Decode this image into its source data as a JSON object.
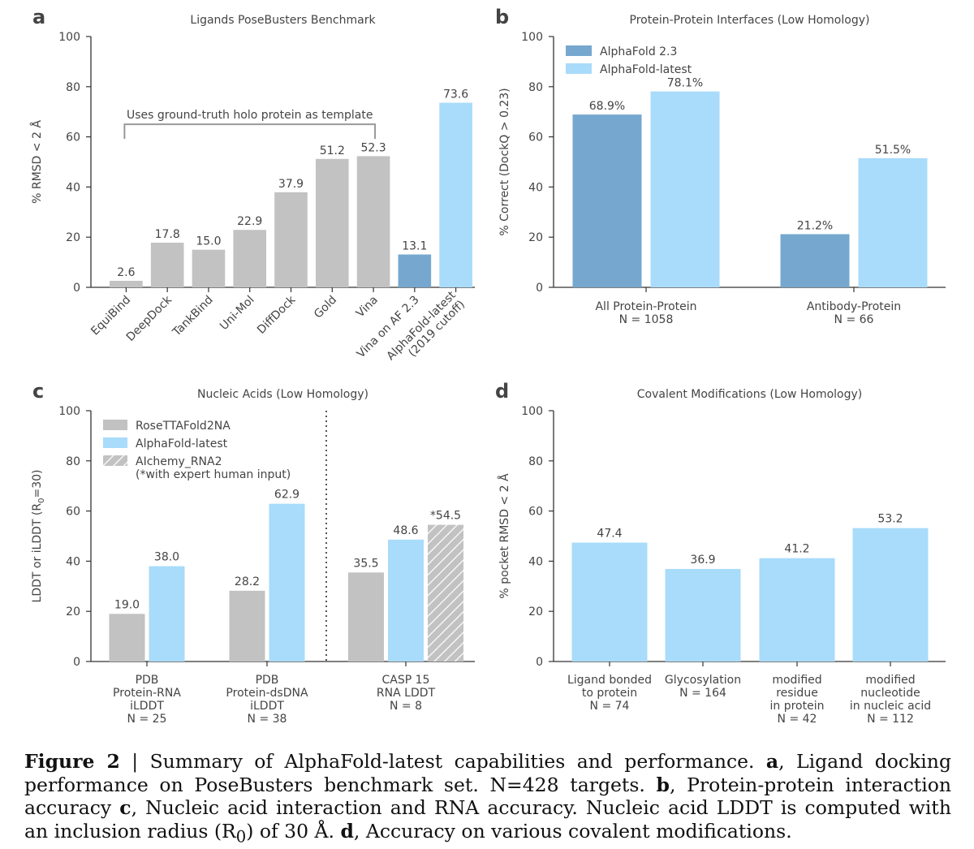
{
  "colors": {
    "gray": "#c2c2c2",
    "af23": "#76a8cf",
    "latest": "#a9dbfa",
    "axis": "#333333",
    "text": "#444444"
  },
  "caption": {
    "label": "Figure 2",
    "sep": " | ",
    "title": "Summary of AlphaFold-latest capabilities and performance.",
    "a_label": "a",
    "a_text": ", Ligand docking performance on PoseBusters benchmark set. N=428 targets.",
    "b_label": "b",
    "b_text": ", Protein-protein interaction accuracy ",
    "c_label": "c",
    "c_text": ", Nucleic acid interaction and RNA accuracy. Nucleic acid LDDT is computed with an inclusion radius (R",
    "c_sub": "0",
    "c_text2": ") of 30 Å. ",
    "d_label": "d",
    "d_text": ", Accuracy on various covalent modifications."
  },
  "chart_data": [
    {
      "id": "a",
      "panel_letter": "a",
      "type": "bar",
      "title": "Ligands PoseBusters Benchmark",
      "ylabel": "% RMSD < 2 Å",
      "ylim": [
        0,
        100
      ],
      "yticks": [
        0,
        20,
        40,
        60,
        80,
        100
      ],
      "categories": [
        "EquiBind",
        "DeepDock",
        "TankBind",
        "Uni-Mol",
        "DiffDock",
        "Gold",
        "Vina",
        "Vina on AF 2.3",
        "AlphaFold-latest\n(2019 cutoff)"
      ],
      "values": [
        2.6,
        17.8,
        15.0,
        22.9,
        37.9,
        51.2,
        52.3,
        13.1,
        73.6
      ],
      "value_labels": [
        "2.6",
        "17.8",
        "15.0",
        "22.9",
        "37.9",
        "51.2",
        "52.3",
        "13.1",
        "73.6"
      ],
      "bar_colors": [
        "gray",
        "gray",
        "gray",
        "gray",
        "gray",
        "gray",
        "gray",
        "af23",
        "latest"
      ],
      "annotation": "Uses ground-truth holo protein as template"
    },
    {
      "id": "b",
      "panel_letter": "b",
      "type": "bar",
      "title": "Protein-Protein Interfaces (Low Homology)",
      "ylabel": "% Correct (DockQ > 0.23)",
      "ylim": [
        0,
        100
      ],
      "yticks": [
        0,
        20,
        40,
        60,
        80,
        100
      ],
      "categories": [
        "All Protein-Protein\nN = 1058",
        "Antibody-Protein\nN = 66"
      ],
      "series": [
        {
          "name": "AlphaFold 2.3",
          "color": "af23",
          "values": [
            68.9,
            21.2
          ],
          "value_labels": [
            "68.9%",
            "21.2%"
          ]
        },
        {
          "name": "AlphaFold-latest",
          "color": "latest",
          "values": [
            78.1,
            51.5
          ],
          "value_labels": [
            "78.1%",
            "51.5%"
          ]
        }
      ],
      "legend": "top-left"
    },
    {
      "id": "c",
      "panel_letter": "c",
      "type": "bar",
      "title": "Nucleic Acids (Low Homology)",
      "ylabel": "LDDT or iLDDT (R0=30)",
      "ylim": [
        0,
        100
      ],
      "yticks": [
        0,
        20,
        40,
        60,
        80,
        100
      ],
      "categories": [
        "PDB\nProtein-RNA\niLDDT\nN = 25",
        "PDB\nProtein-dsDNA\niLDDT\nN = 38",
        "CASP 15\nRNA LDDT\nN = 8"
      ],
      "series": [
        {
          "name": "RoseTTAFold2NA",
          "color": "gray",
          "values": [
            19.0,
            28.2,
            35.5
          ],
          "value_labels": [
            "19.0",
            "28.2",
            "35.5"
          ]
        },
        {
          "name": "AlphaFold-latest",
          "color": "latest",
          "values": [
            38.0,
            62.9,
            48.6
          ],
          "value_labels": [
            "38.0",
            "62.9",
            "48.6"
          ]
        },
        {
          "name": "AIchemy_RNA2\n(*with expert human input)",
          "color": "hatch",
          "values": [
            null,
            null,
            54.5
          ],
          "value_labels": [
            "",
            "",
            "*54.5"
          ]
        }
      ],
      "legend": "top-left",
      "divider_after_category": 1
    },
    {
      "id": "d",
      "panel_letter": "d",
      "type": "bar",
      "title": "Covalent Modifications (Low Homology)",
      "ylabel": "% pocket RMSD < 2 Å",
      "ylim": [
        0,
        100
      ],
      "yticks": [
        0,
        20,
        40,
        60,
        80,
        100
      ],
      "categories": [
        "Ligand bonded\nto protein\nN = 74",
        "Glycosylation\nN = 164",
        "modified\nresidue\nin protein\nN = 42",
        "modified\nnucleotide\nin nucleic acid\nN = 112"
      ],
      "values": [
        47.4,
        36.9,
        41.2,
        53.2
      ],
      "value_labels": [
        "47.4",
        "36.9",
        "41.2",
        "53.2"
      ],
      "bar_colors": [
        "latest",
        "latest",
        "latest",
        "latest"
      ]
    }
  ]
}
